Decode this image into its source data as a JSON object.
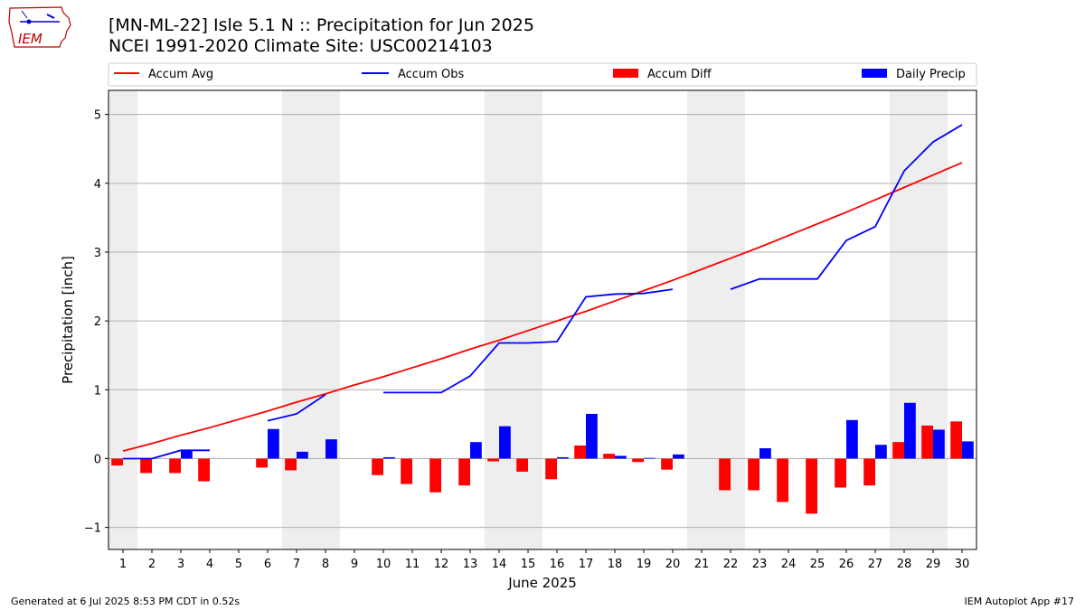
{
  "header": {
    "title_line1": "[MN-ML-22] Isle 5.1 N :: Precipitation for Jun 2025",
    "title_line2": "NCEI 1991-2020 Climate Site: USC00214103"
  },
  "logo": {
    "text": "IEM"
  },
  "footer": {
    "left": "Generated at 6 Jul 2025 8:53 PM CDT in 0.52s",
    "right": "IEM Autoplot App #17"
  },
  "chart_data": {
    "type": "bar",
    "xlabel": "June 2025",
    "ylabel": "Precipitation [inch]",
    "ylim": [
      -1.32,
      5.35
    ],
    "xlim": [
      0.5,
      30.5
    ],
    "yticks": [
      -1,
      0,
      1,
      2,
      3,
      4,
      5
    ],
    "ytick_labels": [
      "−1",
      "0",
      "1",
      "2",
      "3",
      "4",
      "5"
    ],
    "categories": [
      1,
      2,
      3,
      4,
      5,
      6,
      7,
      8,
      9,
      10,
      11,
      12,
      13,
      14,
      15,
      16,
      17,
      18,
      19,
      20,
      21,
      22,
      23,
      24,
      25,
      26,
      27,
      28,
      29,
      30
    ],
    "grid": "horizontal",
    "weekend_shading": [
      [
        0.5,
        1.5
      ],
      [
        6.5,
        8.5
      ],
      [
        13.5,
        15.5
      ],
      [
        20.5,
        22.5
      ],
      [
        27.5,
        29.5
      ]
    ],
    "legend_position": "top",
    "colors": {
      "accum_avg": "#ff0000",
      "accum_obs": "#0000ff",
      "accum_diff": "#ff0000",
      "daily_precip": "#0000ff",
      "weekend": "#eeeeee",
      "grid": "#b0b0b0"
    },
    "series": [
      {
        "name": "Accum Avg",
        "kind": "line",
        "values": [
          0.11,
          0.22,
          0.34,
          0.45,
          0.57,
          0.69,
          0.82,
          0.94,
          1.07,
          1.19,
          1.32,
          1.45,
          1.59,
          1.72,
          1.86,
          2.0,
          2.14,
          2.29,
          2.44,
          2.59,
          2.75,
          2.91,
          3.07,
          3.24,
          3.41,
          3.58,
          3.76,
          3.94,
          4.12,
          4.3
        ]
      },
      {
        "name": "Accum Obs",
        "kind": "line",
        "values": [
          0.0,
          0.0,
          0.12,
          0.12,
          null,
          0.55,
          0.65,
          0.93,
          null,
          0.96,
          0.96,
          0.96,
          1.2,
          1.68,
          1.68,
          1.7,
          2.35,
          2.39,
          2.4,
          2.46,
          null,
          2.46,
          2.61,
          2.61,
          2.61,
          3.17,
          3.37,
          4.18,
          4.6,
          4.85
        ]
      },
      {
        "name": "Accum Diff",
        "kind": "bar",
        "values": [
          -0.1,
          -0.21,
          -0.21,
          -0.33,
          null,
          -0.13,
          -0.17,
          0,
          null,
          -0.24,
          -0.37,
          -0.49,
          -0.39,
          -0.04,
          -0.19,
          -0.3,
          0.19,
          0.07,
          -0.05,
          -0.16,
          null,
          -0.46,
          -0.46,
          -0.63,
          -0.8,
          -0.42,
          -0.39,
          0.24,
          0.48,
          0.54
        ]
      },
      {
        "name": "Daily Precip",
        "kind": "bar",
        "values": [
          0.0,
          0.0,
          0.12,
          0.0,
          null,
          0.43,
          0.1,
          0.28,
          null,
          0.02,
          0.0,
          0.0,
          0.24,
          0.47,
          0.0,
          0.02,
          0.65,
          0.04,
          0.01,
          0.06,
          null,
          0.0,
          0.15,
          0.0,
          0.0,
          0.56,
          0.2,
          0.81,
          0.42,
          0.25
        ]
      }
    ]
  }
}
